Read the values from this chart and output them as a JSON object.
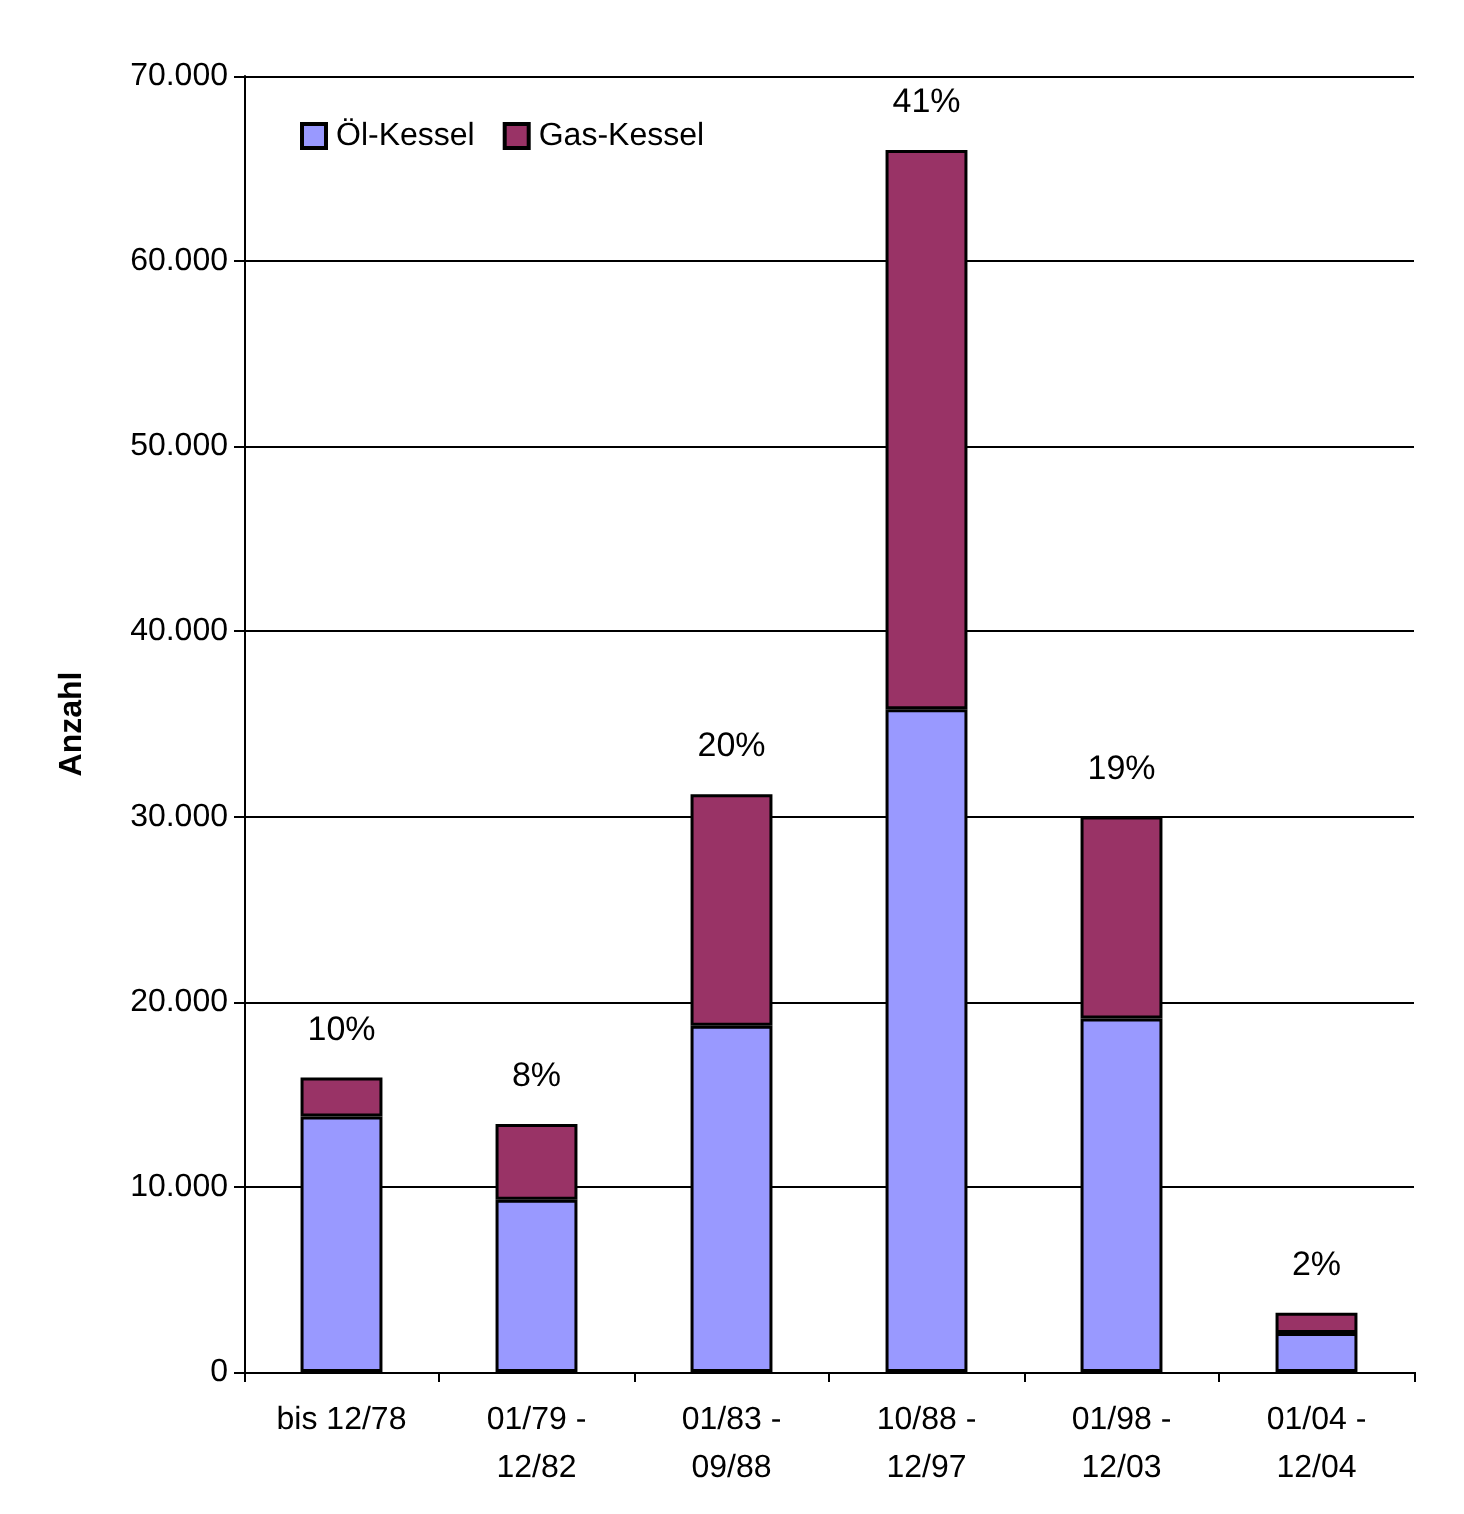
{
  "chart_data": {
    "type": "bar",
    "stacked": true,
    "ylabel": "Anzahl",
    "categories": [
      "bis 12/78",
      "01/79 -\n12/82",
      "01/83 -\n09/88",
      "10/88 -\n12/97",
      "01/98 -\n12/03",
      "01/04 -\n12/04"
    ],
    "series": [
      {
        "name": "Öl-Kessel",
        "color": "#9999ff",
        "values": [
          13800,
          9300,
          18700,
          35800,
          19100,
          2100
        ]
      },
      {
        "name": "Gas-Kessel",
        "color": "#993366",
        "values": [
          2100,
          4100,
          12500,
          30200,
          10900,
          1100
        ]
      }
    ],
    "annotations": [
      {
        "text": "10%",
        "x": "bis 12/78",
        "y": 15900
      },
      {
        "text": "8%",
        "x": "01/79 -\n12/82",
        "y": 13400
      },
      {
        "text": "20%",
        "x": "01/83 -\n09/88",
        "y": 31200
      },
      {
        "text": "41%",
        "x": "10/88 -\n12/97",
        "y": 66000
      },
      {
        "text": "19%",
        "x": "01/98 -\n12/03",
        "y": 30000
      },
      {
        "text": "2%",
        "x": "01/04 -\n12/04",
        "y": 3200
      }
    ],
    "ylim": [
      0,
      70000
    ],
    "yticks": [
      {
        "value": 0,
        "label": "0"
      },
      {
        "value": 10000,
        "label": "10.000"
      },
      {
        "value": 20000,
        "label": "20.000"
      },
      {
        "value": 30000,
        "label": "30.000"
      },
      {
        "value": 40000,
        "label": "40.000"
      },
      {
        "value": 50000,
        "label": "50.000"
      },
      {
        "value": 60000,
        "label": "60.000"
      },
      {
        "value": 70000,
        "label": "70.000"
      }
    ],
    "grid": "y",
    "legend": "top left"
  }
}
